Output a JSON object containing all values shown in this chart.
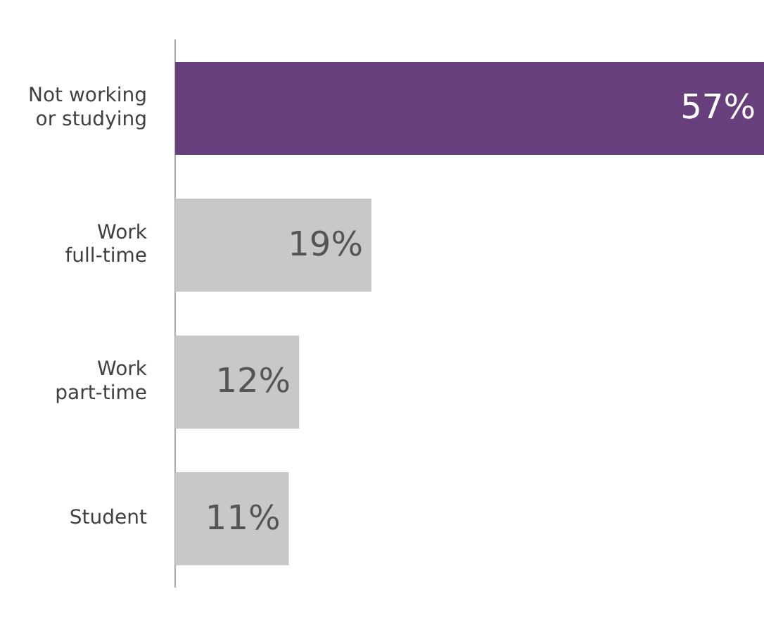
{
  "chart_data": {
    "type": "bar",
    "orientation": "horizontal",
    "categories": [
      "Not working\nor studying",
      "Work\nfull-time",
      "Work\npart-time",
      "Student"
    ],
    "values": [
      57,
      19,
      12,
      11
    ],
    "colors": [
      "#673f7c",
      "#c8c8c8",
      "#c8c8c8",
      "#c8c8c8"
    ],
    "value_labels": [
      "57%",
      "19%",
      "12%",
      "11%"
    ],
    "xlim": [
      0,
      57
    ],
    "tick_labels": "y"
  }
}
